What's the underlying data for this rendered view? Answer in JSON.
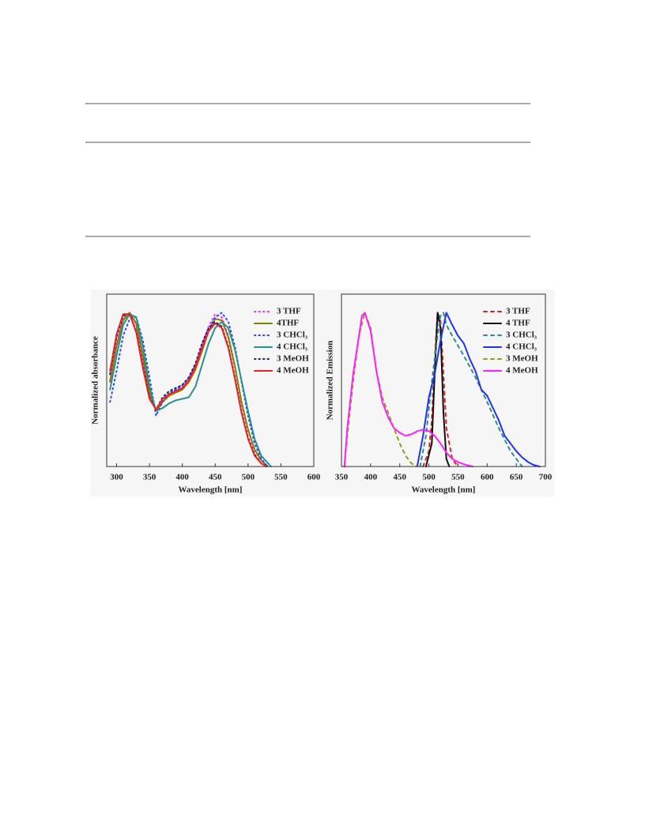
{
  "chart_data": [
    {
      "type": "line",
      "xlabel": "Wavelength [nm]",
      "ylabel": "Normalized absorbance",
      "xlim": [
        285,
        600
      ],
      "xticks": [
        300,
        350,
        400,
        450,
        500,
        550,
        600
      ],
      "ylim": [
        0,
        1.12
      ],
      "series": [
        {
          "name": "3 THF",
          "color": "#ff33ff",
          "style": "dotted",
          "x": [
            290,
            300,
            310,
            320,
            330,
            340,
            350,
            360,
            370,
            380,
            390,
            400,
            410,
            420,
            430,
            440,
            450,
            460,
            470,
            480,
            490,
            500,
            510,
            520,
            530
          ],
          "values": [
            0.56,
            0.8,
            0.96,
            1.0,
            0.92,
            0.7,
            0.47,
            0.37,
            0.43,
            0.47,
            0.5,
            0.52,
            0.57,
            0.66,
            0.79,
            0.91,
            0.99,
            0.97,
            0.85,
            0.65,
            0.42,
            0.24,
            0.11,
            0.04,
            0.0
          ]
        },
        {
          "name": "4THF",
          "color": "#808000",
          "style": "solid",
          "x": [
            290,
            300,
            310,
            320,
            330,
            340,
            350,
            360,
            370,
            380,
            390,
            400,
            410,
            420,
            430,
            440,
            450,
            460,
            470,
            480,
            490,
            500,
            510,
            520,
            530
          ],
          "values": [
            0.55,
            0.78,
            0.95,
            1.0,
            0.93,
            0.72,
            0.48,
            0.36,
            0.42,
            0.46,
            0.48,
            0.5,
            0.55,
            0.63,
            0.75,
            0.88,
            0.96,
            0.95,
            0.84,
            0.65,
            0.42,
            0.24,
            0.11,
            0.04,
            0.0
          ]
        },
        {
          "name": "3 CHCl₃",
          "color": "#3344ff",
          "style": "dotted",
          "x": [
            290,
            300,
            310,
            320,
            330,
            340,
            350,
            360,
            370,
            380,
            390,
            400,
            410,
            420,
            430,
            440,
            450,
            460,
            470,
            480,
            490,
            500,
            510,
            520,
            530
          ],
          "values": [
            0.42,
            0.62,
            0.85,
            0.96,
            0.97,
            0.82,
            0.58,
            0.33,
            0.42,
            0.48,
            0.5,
            0.53,
            0.58,
            0.66,
            0.77,
            0.89,
            0.97,
            1.0,
            0.94,
            0.78,
            0.55,
            0.33,
            0.15,
            0.05,
            0.0
          ]
        },
        {
          "name": "4 CHCl₃",
          "color": "#2a8f8f",
          "style": "solid",
          "x": [
            290,
            300,
            310,
            320,
            330,
            340,
            350,
            360,
            370,
            380,
            390,
            400,
            410,
            420,
            430,
            440,
            450,
            460,
            470,
            480,
            490,
            500,
            510,
            520,
            535
          ],
          "values": [
            0.5,
            0.72,
            0.92,
            0.99,
            0.97,
            0.78,
            0.52,
            0.36,
            0.38,
            0.41,
            0.43,
            0.44,
            0.45,
            0.52,
            0.66,
            0.8,
            0.9,
            0.94,
            0.9,
            0.76,
            0.56,
            0.36,
            0.18,
            0.07,
            0.0
          ]
        },
        {
          "name": "3 MeOH",
          "color": "#222266",
          "style": "dotted",
          "x": [
            290,
            300,
            310,
            320,
            330,
            340,
            350,
            360,
            370,
            380,
            390,
            400,
            410,
            420,
            430,
            440,
            450,
            460,
            470,
            480,
            490,
            500,
            510,
            520,
            528
          ],
          "values": [
            0.6,
            0.84,
            0.98,
            0.99,
            0.88,
            0.66,
            0.45,
            0.37,
            0.45,
            0.49,
            0.51,
            0.53,
            0.58,
            0.67,
            0.8,
            0.9,
            0.94,
            0.91,
            0.78,
            0.58,
            0.36,
            0.19,
            0.08,
            0.02,
            0.0
          ]
        },
        {
          "name": "4 MeOH",
          "color": "#ee2222",
          "style": "solid",
          "x": [
            290,
            300,
            310,
            320,
            330,
            340,
            350,
            360,
            370,
            380,
            390,
            400,
            410,
            420,
            430,
            440,
            450,
            460,
            470,
            480,
            490,
            500,
            510,
            520,
            528
          ],
          "values": [
            0.62,
            0.86,
            0.99,
            0.99,
            0.87,
            0.64,
            0.44,
            0.37,
            0.44,
            0.47,
            0.49,
            0.51,
            0.56,
            0.65,
            0.77,
            0.88,
            0.93,
            0.9,
            0.77,
            0.57,
            0.35,
            0.18,
            0.07,
            0.02,
            0.0
          ]
        }
      ]
    },
    {
      "type": "line",
      "xlabel": "Wavelength [nm]",
      "ylabel": "Normalized Emission",
      "xlim": [
        350,
        700
      ],
      "xticks": [
        350,
        400,
        450,
        500,
        550,
        600,
        650,
        700
      ],
      "ylim": [
        0,
        1.12
      ],
      "series": [
        {
          "name": "3 THF",
          "color": "#dd2222",
          "style": "dashed",
          "x": [
            490,
            500,
            505,
            510,
            515,
            520,
            525,
            530,
            540,
            550
          ],
          "values": [
            0.0,
            0.1,
            0.3,
            0.7,
            1.0,
            0.95,
            0.6,
            0.25,
            0.05,
            0.0
          ]
        },
        {
          "name": "4 THF",
          "color": "#111111",
          "style": "solid",
          "x": [
            495,
            505,
            510,
            515,
            520,
            525,
            530,
            535
          ],
          "values": [
            0.0,
            0.15,
            0.6,
            1.0,
            0.9,
            0.35,
            0.05,
            0.0
          ]
        },
        {
          "name": "3 CHCl₃",
          "color": "#2a8f8f",
          "style": "dashed",
          "x": [
            485,
            495,
            505,
            515,
            520,
            525,
            530,
            540,
            560,
            580,
            600,
            620,
            640,
            660
          ],
          "values": [
            0.0,
            0.2,
            0.55,
            0.85,
            0.98,
            1.0,
            0.92,
            0.85,
            0.72,
            0.58,
            0.42,
            0.25,
            0.1,
            0.0
          ]
        },
        {
          "name": "4 CHCl₃",
          "color": "#2233ee",
          "style": "solid",
          "x": [
            480,
            490,
            500,
            510,
            520,
            530,
            540,
            550,
            560,
            570,
            580,
            590,
            600,
            610,
            620,
            630,
            640,
            650,
            660,
            670,
            680,
            690
          ],
          "values": [
            0.0,
            0.2,
            0.45,
            0.6,
            0.82,
            1.0,
            0.92,
            0.85,
            0.8,
            0.7,
            0.62,
            0.5,
            0.46,
            0.38,
            0.3,
            0.2,
            0.15,
            0.1,
            0.06,
            0.03,
            0.01,
            0.0
          ]
        },
        {
          "name": "3 MeOH",
          "color": "#999922",
          "style": "dashed",
          "x": [
            355,
            360,
            370,
            380,
            390,
            400,
            410,
            420,
            430,
            440,
            450,
            460,
            470,
            480
          ],
          "values": [
            0.0,
            0.2,
            0.55,
            0.85,
            1.0,
            0.9,
            0.62,
            0.45,
            0.35,
            0.25,
            0.15,
            0.07,
            0.02,
            0.0
          ]
        },
        {
          "name": "4 MeOH",
          "color": "#ff22ff",
          "style": "solid",
          "x": [
            355,
            360,
            370,
            380,
            385,
            390,
            400,
            410,
            420,
            430,
            440,
            450,
            460,
            470,
            480,
            490,
            500,
            510,
            520,
            530,
            540,
            550,
            560,
            575
          ],
          "values": [
            0.0,
            0.25,
            0.6,
            0.85,
            0.98,
            1.0,
            0.88,
            0.62,
            0.42,
            0.32,
            0.25,
            0.22,
            0.2,
            0.21,
            0.23,
            0.24,
            0.23,
            0.2,
            0.15,
            0.09,
            0.05,
            0.03,
            0.015,
            0.0
          ]
        }
      ]
    }
  ]
}
